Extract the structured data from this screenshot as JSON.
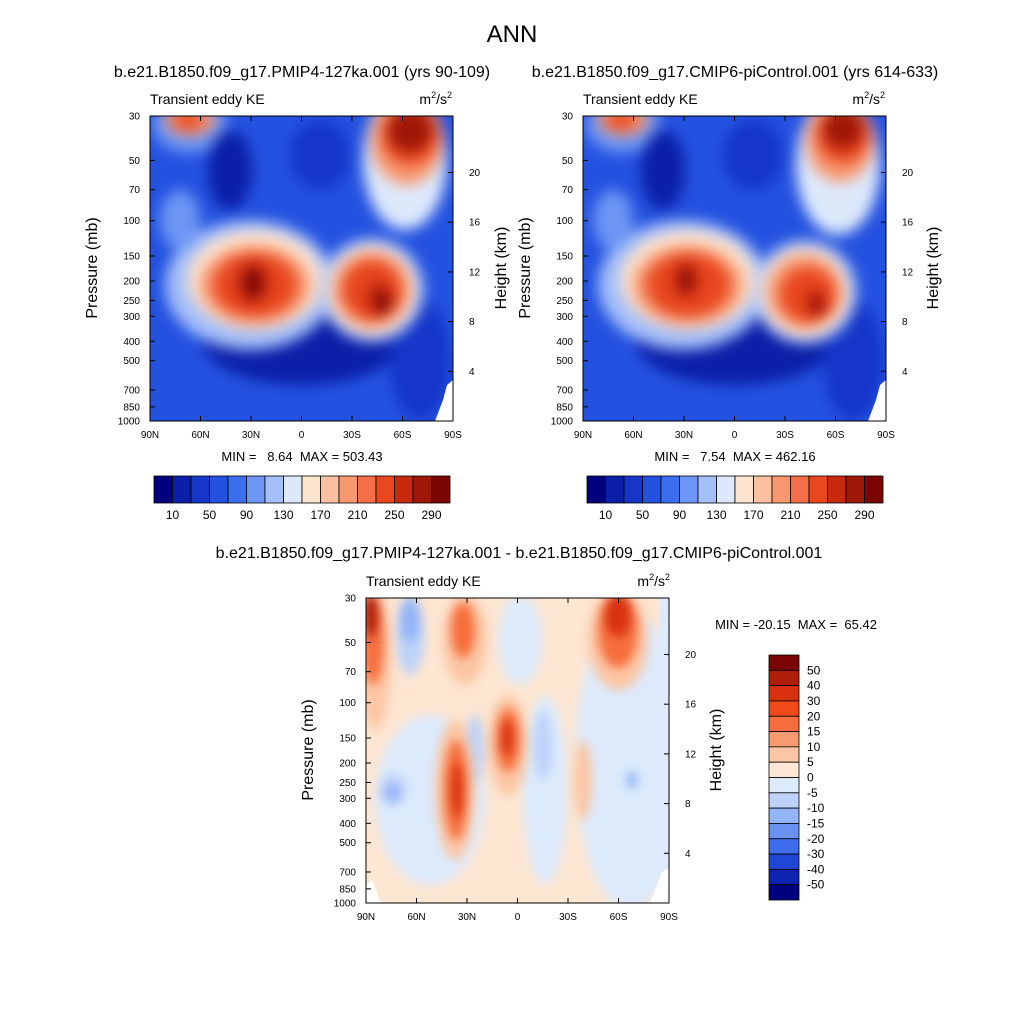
{
  "figure": {
    "title": "ANN"
  },
  "chart_data": [
    {
      "type": "heatmap",
      "title": "b.e21.B1850.f09_g17.PMIP4-127ka.001 (yrs 90-109)",
      "variable_label": "Transient eddy KE",
      "units": "m²/s²",
      "units_base": "m",
      "units_exp1": "2",
      "units_mid": "/s",
      "units_exp2": "2",
      "xlabel": "",
      "ylabel": "Pressure (mb)",
      "ylabel_right": "Height (km)",
      "x_ticks": [
        "90N",
        "60N",
        "30N",
        "0",
        "30S",
        "60S",
        "90S"
      ],
      "y_ticks": [
        "30",
        "50",
        "70",
        "100",
        "150",
        "200",
        "250",
        "300",
        "400",
        "500",
        "700",
        "850",
        "1000"
      ],
      "y_ticks_right": [
        "20",
        "16",
        "12",
        "8",
        "4"
      ],
      "stats": "MIN =   8.64  MAX = 503.43",
      "min": 8.64,
      "max": 503.43,
      "colorbar_labels": [
        "10",
        "50",
        "90",
        "130",
        "170",
        "210",
        "250",
        "290"
      ],
      "colorbar_colors": [
        "#00007f",
        "#0b1fa8",
        "#1536c8",
        "#2452e0",
        "#3c6ff0",
        "#6e96f4",
        "#a4bef8",
        "#dde9fb",
        "#fde4cf",
        "#fbc0a0",
        "#f89870",
        "#f46e48",
        "#e8471f",
        "#c82a10",
        "#9f1706",
        "#7a0503"
      ]
    },
    {
      "type": "heatmap",
      "title": "b.e21.B1850.f09_g17.CMIP6-piControl.001 (yrs 614-633)",
      "variable_label": "Transient eddy KE",
      "units": "m²/s²",
      "units_base": "m",
      "units_exp1": "2",
      "units_mid": "/s",
      "units_exp2": "2",
      "xlabel": "",
      "ylabel": "Pressure (mb)",
      "ylabel_right": "Height (km)",
      "x_ticks": [
        "90N",
        "60N",
        "30N",
        "0",
        "30S",
        "60S",
        "90S"
      ],
      "y_ticks": [
        "30",
        "50",
        "70",
        "100",
        "150",
        "200",
        "250",
        "300",
        "400",
        "500",
        "700",
        "850",
        "1000"
      ],
      "y_ticks_right": [
        "20",
        "16",
        "12",
        "8",
        "4"
      ],
      "stats": "MIN =   7.54  MAX = 462.16",
      "min": 7.54,
      "max": 462.16,
      "colorbar_labels": [
        "10",
        "50",
        "90",
        "130",
        "170",
        "210",
        "250",
        "290"
      ],
      "colorbar_colors": [
        "#00007f",
        "#0b1fa8",
        "#1536c8",
        "#2452e0",
        "#3c6ff0",
        "#6e96f4",
        "#a4bef8",
        "#dde9fb",
        "#fde4cf",
        "#fbc0a0",
        "#f89870",
        "#f46e48",
        "#e8471f",
        "#c82a10",
        "#9f1706",
        "#7a0503"
      ]
    },
    {
      "type": "heatmap",
      "title": "b.e21.B1850.f09_g17.PMIP4-127ka.001 - b.e21.B1850.f09_g17.CMIP6-piControl.001",
      "variable_label": "Transient eddy KE",
      "units": "m²/s²",
      "units_base": "m",
      "units_exp1": "2",
      "units_mid": "/s",
      "units_exp2": "2",
      "xlabel": "",
      "ylabel": "Pressure (mb)",
      "ylabel_right": "Height (km)",
      "x_ticks": [
        "90N",
        "60N",
        "30N",
        "0",
        "30S",
        "60S",
        "90S"
      ],
      "y_ticks": [
        "30",
        "50",
        "70",
        "100",
        "150",
        "200",
        "250",
        "300",
        "400",
        "500",
        "700",
        "850",
        "1000"
      ],
      "y_ticks_right": [
        "20",
        "16",
        "12",
        "8",
        "4"
      ],
      "stats": "MIN = -20.15  MAX =  65.42",
      "min": -20.15,
      "max": 65.42,
      "colorbar_labels": [
        "50",
        "40",
        "30",
        "20",
        "15",
        "10",
        "5",
        "0",
        "-5",
        "-10",
        "-15",
        "-20",
        "-30",
        "-40",
        "-50"
      ],
      "colorbar_colors": [
        "#7a0503",
        "#b01e08",
        "#d8320f",
        "#f04a18",
        "#f66e3c",
        "#f89a70",
        "#fbc6a4",
        "#fde6d2",
        "#dceafc",
        "#bcd2fa",
        "#93b4f6",
        "#6a92f2",
        "#3d6ded",
        "#1f47d6",
        "#0c24b0",
        "#00007f"
      ]
    }
  ]
}
